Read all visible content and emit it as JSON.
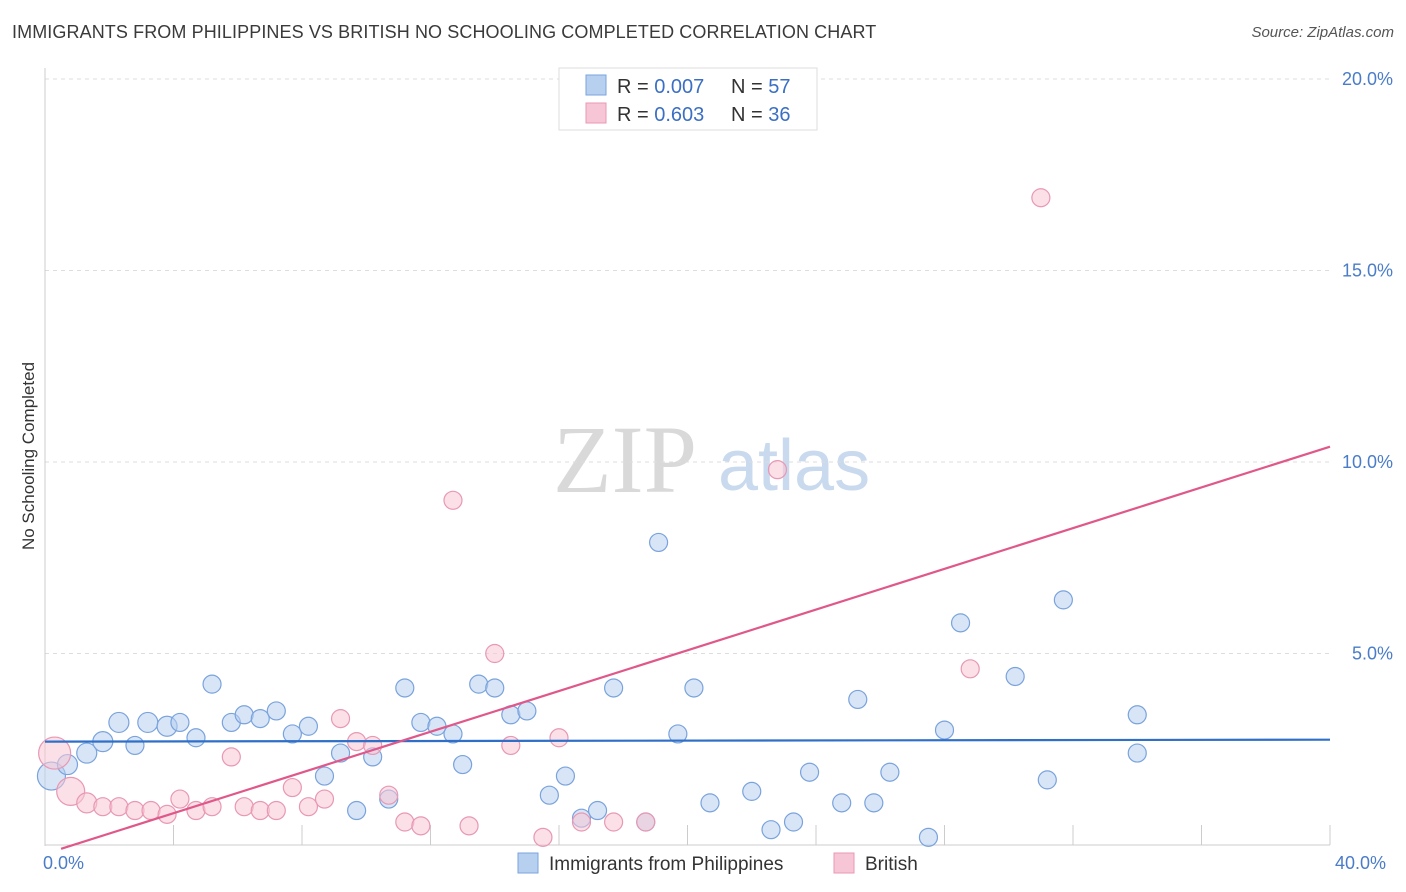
{
  "title": "IMMIGRANTS FROM PHILIPPINES VS BRITISH NO SCHOOLING COMPLETED CORRELATION CHART",
  "source": "Source: ZipAtlas.com",
  "watermark": {
    "zip": "ZIP",
    "atlas": "atlas"
  },
  "legend_top": [
    {
      "r_label": "R = ",
      "r_value": "0.007",
      "n_label": "N = ",
      "n_value": "57"
    },
    {
      "r_label": "R = ",
      "r_value": "0.603",
      "n_label": "N = ",
      "n_value": "36"
    }
  ],
  "colors": {
    "blue_fill": "#b8d0f0",
    "blue_stroke": "#7aa3dc",
    "blue_line": "#2f6fc8",
    "pink_fill": "#f7c6d6",
    "pink_stroke": "#e898b3",
    "pink_line": "#e0588a",
    "grid": "#dddddd",
    "axis_text": "#4a7cc7"
  },
  "chart_data": {
    "type": "scatter",
    "title": "IMMIGRANTS FROM PHILIPPINES VS BRITISH NO SCHOOLING COMPLETED CORRELATION CHART",
    "ylabel": "No Schooling Completed",
    "xlabel": "",
    "xlim": [
      0,
      40
    ],
    "ylim": [
      0,
      20
    ],
    "x_ticks": [
      "0.0%",
      "40.0%"
    ],
    "y_ticks": [
      {
        "value": 5,
        "label": "5.0%"
      },
      {
        "value": 10,
        "label": "10.0%"
      },
      {
        "value": 15,
        "label": "15.0%"
      },
      {
        "value": 20,
        "label": "20.0%"
      }
    ],
    "grid": true,
    "legend_position": "top-center",
    "series": [
      {
        "name": "Immigrants from Philippines",
        "color": "#b8d0f0",
        "trend": {
          "x": [
            0,
            40
          ],
          "y": [
            2.7,
            2.75
          ]
        },
        "points": [
          [
            0.2,
            1.8,
            14
          ],
          [
            0.7,
            2.1,
            10
          ],
          [
            1.3,
            2.4,
            10
          ],
          [
            1.8,
            2.7,
            10
          ],
          [
            2.3,
            3.2,
            10
          ],
          [
            2.8,
            2.6,
            9
          ],
          [
            3.2,
            3.2,
            10
          ],
          [
            3.8,
            3.1,
            10
          ],
          [
            4.2,
            3.2,
            9
          ],
          [
            4.7,
            2.8,
            9
          ],
          [
            5.2,
            4.2,
            9
          ],
          [
            5.8,
            3.2,
            9
          ],
          [
            6.2,
            3.4,
            9
          ],
          [
            6.7,
            3.3,
            9
          ],
          [
            7.2,
            3.5,
            9
          ],
          [
            7.7,
            2.9,
            9
          ],
          [
            8.2,
            3.1,
            9
          ],
          [
            8.7,
            1.8,
            9
          ],
          [
            9.2,
            2.4,
            9
          ],
          [
            9.7,
            0.9,
            9
          ],
          [
            10.2,
            2.3,
            9
          ],
          [
            10.7,
            1.2,
            9
          ],
          [
            11.2,
            4.1,
            9
          ],
          [
            11.7,
            3.2,
            9
          ],
          [
            12.2,
            3.1,
            9
          ],
          [
            12.7,
            2.9,
            9
          ],
          [
            13.0,
            2.1,
            9
          ],
          [
            13.5,
            4.2,
            9
          ],
          [
            14.0,
            4.1,
            9
          ],
          [
            14.5,
            3.4,
            9
          ],
          [
            15.0,
            3.5,
            9
          ],
          [
            15.7,
            1.3,
            9
          ],
          [
            16.2,
            1.8,
            9
          ],
          [
            16.7,
            0.7,
            9
          ],
          [
            17.2,
            0.9,
            9
          ],
          [
            17.7,
            4.1,
            9
          ],
          [
            18.7,
            0.6,
            9
          ],
          [
            19.1,
            7.9,
            9
          ],
          [
            19.7,
            2.9,
            9
          ],
          [
            20.2,
            4.1,
            9
          ],
          [
            20.7,
            1.1,
            9
          ],
          [
            22.0,
            1.4,
            9
          ],
          [
            22.6,
            0.4,
            9
          ],
          [
            23.3,
            0.6,
            9
          ],
          [
            23.8,
            1.9,
            9
          ],
          [
            24.8,
            1.1,
            9
          ],
          [
            25.3,
            3.8,
            9
          ],
          [
            25.8,
            1.1,
            9
          ],
          [
            26.3,
            1.9,
            9
          ],
          [
            27.5,
            0.2,
            9
          ],
          [
            28.0,
            3.0,
            9
          ],
          [
            28.5,
            5.8,
            9
          ],
          [
            30.2,
            4.4,
            9
          ],
          [
            31.2,
            1.7,
            9
          ],
          [
            31.7,
            6.4,
            9
          ],
          [
            34.0,
            3.4,
            9
          ],
          [
            34.0,
            2.4,
            9
          ]
        ]
      },
      {
        "name": "British",
        "color": "#f7c6d6",
        "trend": {
          "x": [
            0.5,
            40
          ],
          "y": [
            -0.1,
            10.4
          ]
        },
        "points": [
          [
            0.3,
            2.4,
            16
          ],
          [
            0.8,
            1.4,
            14
          ],
          [
            1.3,
            1.1,
            10
          ],
          [
            1.8,
            1.0,
            9
          ],
          [
            2.3,
            1.0,
            9
          ],
          [
            2.8,
            0.9,
            9
          ],
          [
            3.3,
            0.9,
            9
          ],
          [
            3.8,
            0.8,
            9
          ],
          [
            4.2,
            1.2,
            9
          ],
          [
            4.7,
            0.9,
            9
          ],
          [
            5.2,
            1.0,
            9
          ],
          [
            5.8,
            2.3,
            9
          ],
          [
            6.2,
            1.0,
            9
          ],
          [
            6.7,
            0.9,
            9
          ],
          [
            7.2,
            0.9,
            9
          ],
          [
            7.7,
            1.5,
            9
          ],
          [
            8.2,
            1.0,
            9
          ],
          [
            8.7,
            1.2,
            9
          ],
          [
            9.2,
            3.3,
            9
          ],
          [
            9.7,
            2.7,
            9
          ],
          [
            10.2,
            2.6,
            9
          ],
          [
            10.7,
            1.3,
            9
          ],
          [
            11.2,
            0.6,
            9
          ],
          [
            11.7,
            0.5,
            9
          ],
          [
            12.7,
            9.0,
            9
          ],
          [
            13.2,
            0.5,
            9
          ],
          [
            14.0,
            5.0,
            9
          ],
          [
            14.5,
            2.6,
            9
          ],
          [
            15.5,
            0.2,
            9
          ],
          [
            16.0,
            2.8,
            9
          ],
          [
            16.7,
            0.6,
            9
          ],
          [
            17.7,
            0.6,
            9
          ],
          [
            18.7,
            0.6,
            9
          ],
          [
            22.8,
            9.8,
            9
          ],
          [
            28.8,
            4.6,
            9
          ],
          [
            31.0,
            16.9,
            9
          ]
        ]
      }
    ]
  }
}
